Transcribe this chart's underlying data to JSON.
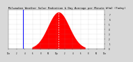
{
  "title": "Milwaukee Weather Solar Radiation & Day Average per Minute W/m2 (Today)",
  "title_fontsize": 2.8,
  "background_color": "#d8d8d8",
  "plot_bg_color": "#ffffff",
  "fill_color": "#ff0000",
  "line_color": "#ff0000",
  "current_time_color": "#0000ff",
  "peak_line_color": "#ffffff",
  "grid_color": "#999999",
  "ylim": [
    0,
    800
  ],
  "xlim": [
    0,
    1440
  ],
  "current_time_x": 210,
  "peak_x": 750,
  "num_points": 1441,
  "peak_value": 760,
  "sunrise": 350,
  "sunset": 1150
}
